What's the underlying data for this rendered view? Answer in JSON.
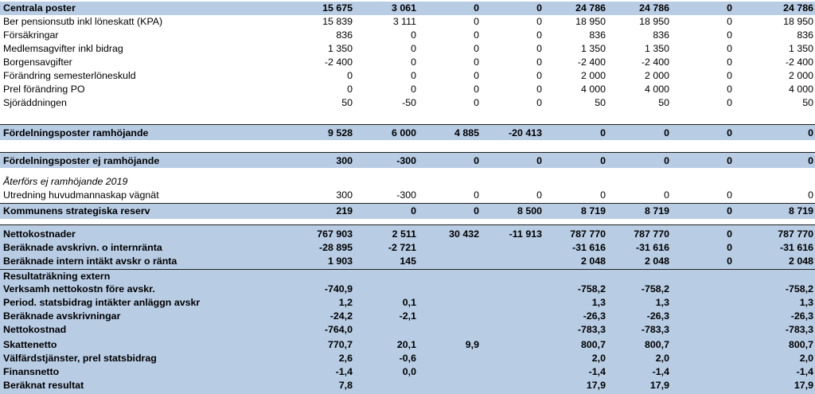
{
  "rows": [
    {
      "label": "Centrala poster",
      "values": [
        "15 675",
        "3 061",
        "0",
        "0",
        "24 786",
        "24 786",
        "0",
        "24 786"
      ]
    },
    {
      "label": "Ber pensionsutb inkl löneskatt (KPA)",
      "values": [
        "15 839",
        "3 111",
        "0",
        "0",
        "18 950",
        "18 950",
        "0",
        "18 950"
      ]
    },
    {
      "label": "Försäkringar",
      "values": [
        "836",
        "0",
        "0",
        "0",
        "836",
        "836",
        "0",
        "836"
      ]
    },
    {
      "label": "Medlemsagvifter inkl bidrag",
      "values": [
        "1 350",
        "0",
        "0",
        "0",
        "1 350",
        "1 350",
        "0",
        "1 350"
      ]
    },
    {
      "label": "Borgensavgifter",
      "values": [
        "-2 400",
        "0",
        "0",
        "0",
        "-2 400",
        "-2 400",
        "0",
        "-2 400"
      ]
    },
    {
      "label": "Förändring semesterlöneskuld",
      "values": [
        "0",
        "0",
        "0",
        "0",
        "2 000",
        "2 000",
        "0",
        "2 000"
      ]
    },
    {
      "label": "Prel förändring PO",
      "values": [
        "0",
        "0",
        "0",
        "0",
        "4 000",
        "4 000",
        "0",
        "4 000"
      ]
    },
    {
      "label": "Sjöräddningen",
      "values": [
        "50",
        "-50",
        "0",
        "0",
        "50",
        "50",
        "0",
        "50"
      ]
    },
    {
      "label": "Fördelningsposter ramhöjande",
      "values": [
        "9 528",
        "6 000",
        "4 885",
        "-20 413",
        "0",
        "0",
        "0",
        "0"
      ]
    },
    {
      "label": "Fördelningsposter ej ramhöjande",
      "values": [
        "300",
        "-300",
        "0",
        "0",
        "0",
        "0",
        "0",
        "0"
      ]
    },
    {
      "label": "Återförs ej ramhöjande 2019",
      "values": [
        "",
        "",
        "",
        "",
        "",
        "",
        "",
        ""
      ]
    },
    {
      "label": "Utredning huvudmannaskap vägnät",
      "values": [
        "300",
        "-300",
        "0",
        "0",
        "0",
        "0",
        "0",
        "0"
      ]
    },
    {
      "label": "Kommunens strategiska reserv",
      "values": [
        "219",
        "0",
        "0",
        "8 500",
        "8 719",
        "8 719",
        "0",
        "8 719"
      ]
    },
    {
      "label": "Nettokostnader",
      "values": [
        "767 903",
        "2 511",
        "30 432",
        "-11 913",
        "787 770",
        "787 770",
        "0",
        "787 770"
      ]
    },
    {
      "label": "Beräknade avskrivn. o internränta",
      "values": [
        "-28 895",
        "-2 721",
        "",
        "",
        "-31 616",
        "-31 616",
        "0",
        "-31 616"
      ]
    },
    {
      "label": "Beräknade intern intäkt avskr o ränta",
      "values": [
        "1 903",
        "145",
        "",
        "",
        "2 048",
        "2 048",
        "0",
        "2 048"
      ]
    },
    {
      "label": "Resultaträkning extern",
      "values": [
        "",
        "",
        "",
        "",
        "",
        "",
        "",
        ""
      ]
    },
    {
      "label": "Verksamh nettokostn före avskr.",
      "values": [
        "-740,9",
        "",
        "",
        "",
        "-758,2",
        "-758,2",
        "",
        "-758,2"
      ]
    },
    {
      "label": "Period. statsbidrag intäkter anläggn avskr",
      "values": [
        "1,2",
        "0,1",
        "",
        "",
        "1,3",
        "1,3",
        "",
        "1,3"
      ]
    },
    {
      "label": "Beräknade avskrivningar",
      "values": [
        "-24,2",
        "-2,1",
        "",
        "",
        "-26,3",
        "-26,3",
        "",
        "-26,3"
      ]
    },
    {
      "label": "Nettokostnad",
      "values": [
        "-764,0",
        "",
        "",
        "",
        "-783,3",
        "-783,3",
        "",
        "-783,3"
      ]
    },
    {
      "label": "Skattenetto",
      "values": [
        "770,7",
        "20,1",
        "9,9",
        "",
        "800,7",
        "800,7",
        "",
        "800,7"
      ]
    },
    {
      "label": "Välfärdstjänster, prel statsbidrag",
      "values": [
        "2,6",
        "-0,6",
        "",
        "",
        "2,0",
        "2,0",
        "",
        "2,0"
      ]
    },
    {
      "label": "Finansnetto",
      "values": [
        "-1,4",
        "0,0",
        "",
        "",
        "-1,4",
        "-1,4",
        "",
        "-1,4"
      ]
    },
    {
      "label": "Beräknat resultat",
      "values": [
        "7,8",
        "",
        "",
        "",
        "17,9",
        "17,9",
        "",
        "17,9"
      ]
    }
  ]
}
